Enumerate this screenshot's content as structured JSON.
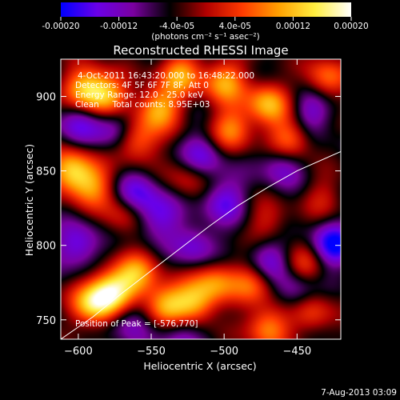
{
  "chart_data": {
    "type": "heatmap",
    "title": "Reconstructed RHESSI Image",
    "xlabel": "Heliocentric X (arcsec)",
    "ylabel": "Heliocentric Y (arcsec)",
    "xlim": [
      -612,
      -420
    ],
    "ylim": [
      737,
      925
    ],
    "x_ticks": [
      -600,
      -550,
      -500,
      -450
    ],
    "y_ticks": [
      750,
      800,
      850,
      900
    ],
    "colorbar": {
      "label": "(photons cm⁻² s⁻¹ asec⁻²)",
      "range": [
        -0.0002,
        0.0002
      ],
      "tick_values": [
        -0.0002,
        -0.00012,
        -4e-05,
        4e-05,
        0.00012,
        0.0002
      ],
      "tick_labels": [
        "-0.00020",
        "-0.00012",
        "-4.0e-05",
        "4.0e-05",
        "0.00012",
        "0.00020"
      ],
      "colors": [
        "#0000ff",
        "#6a00e8",
        "#7a00a0",
        "#000000",
        "#b00000",
        "#ff3a00",
        "#ffa000",
        "#ffee40",
        "#ffffff"
      ]
    },
    "annotations": [
      "4-Oct-2011 16:43:20.000 to 16:48:22.000",
      "Detectors: 4F 5F 6F 7F 8F, Att 0",
      "Energy Range: 12.0 - 25.0 keV",
      "Clean     Total counts: 8.95E+03"
    ],
    "peak_label": "Position of Peak = [-576,770]",
    "peak": [
      -576,
      770
    ],
    "limb_curve": [
      [
        -612,
        737
      ],
      [
        -590,
        752
      ],
      [
        -570,
        768
      ],
      [
        -550,
        783
      ],
      [
        -530,
        798
      ],
      [
        -510,
        813
      ],
      [
        -490,
        827
      ],
      [
        -470,
        839
      ],
      [
        -450,
        850
      ],
      [
        -420,
        863
      ]
    ],
    "sources": [
      {
        "x": -577,
        "y": 769,
        "value": 0.0002
      },
      {
        "x": -590,
        "y": 760,
        "value": 0.00017
      },
      {
        "x": -560,
        "y": 780,
        "value": 0.00014
      },
      {
        "x": -540,
        "y": 760,
        "value": 0.00016
      },
      {
        "x": -520,
        "y": 762,
        "value": 0.00015
      },
      {
        "x": -505,
        "y": 775,
        "value": 0.00012
      },
      {
        "x": -480,
        "y": 775,
        "value": 0.00011
      },
      {
        "x": -470,
        "y": 745,
        "value": 0.00014
      },
      {
        "x": -440,
        "y": 755,
        "value": 0.0001
      },
      {
        "x": -445,
        "y": 785,
        "value": 0.0001
      },
      {
        "x": -595,
        "y": 905,
        "value": 0.00017
      },
      {
        "x": -580,
        "y": 900,
        "value": 0.00015
      },
      {
        "x": -545,
        "y": 892,
        "value": 0.00016
      },
      {
        "x": -530,
        "y": 915,
        "value": 0.00014
      },
      {
        "x": -560,
        "y": 870,
        "value": 0.00013
      },
      {
        "x": -500,
        "y": 910,
        "value": 0.00015
      },
      {
        "x": -495,
        "y": 878,
        "value": 0.00013
      },
      {
        "x": -470,
        "y": 895,
        "value": 0.00016
      },
      {
        "x": -455,
        "y": 870,
        "value": 0.00014
      },
      {
        "x": -430,
        "y": 912,
        "value": 0.00012
      },
      {
        "x": -605,
        "y": 850,
        "value": 0.00018
      },
      {
        "x": -590,
        "y": 840,
        "value": 0.00012
      },
      {
        "x": -570,
        "y": 820,
        "value": 8e-05
      },
      {
        "x": -525,
        "y": 845,
        "value": 7e-05
      },
      {
        "x": -470,
        "y": 815,
        "value": 7e-05
      },
      {
        "x": -432,
        "y": 832,
        "value": 6e-05
      },
      {
        "x": -425,
        "y": 800,
        "value": -0.00015
      },
      {
        "x": -600,
        "y": 800,
        "value": -0.00011
      },
      {
        "x": -560,
        "y": 835,
        "value": -0.0001
      },
      {
        "x": -545,
        "y": 820,
        "value": -0.0001
      },
      {
        "x": -575,
        "y": 880,
        "value": -0.0001
      },
      {
        "x": -515,
        "y": 860,
        "value": -0.0001
      },
      {
        "x": -500,
        "y": 830,
        "value": -0.0001
      },
      {
        "x": -460,
        "y": 855,
        "value": -0.0001
      },
      {
        "x": -470,
        "y": 790,
        "value": -0.0001
      },
      {
        "x": -520,
        "y": 800,
        "value": -9e-05
      },
      {
        "x": -450,
        "y": 770,
        "value": -0.0001
      },
      {
        "x": -600,
        "y": 882,
        "value": -9e-05
      },
      {
        "x": -565,
        "y": 750,
        "value": -8e-05
      },
      {
        "x": -440,
        "y": 890,
        "value": -9e-05
      },
      {
        "x": -530,
        "y": 740,
        "value": -8e-05
      }
    ]
  },
  "footer_date": "7-Aug-2013 03:09"
}
